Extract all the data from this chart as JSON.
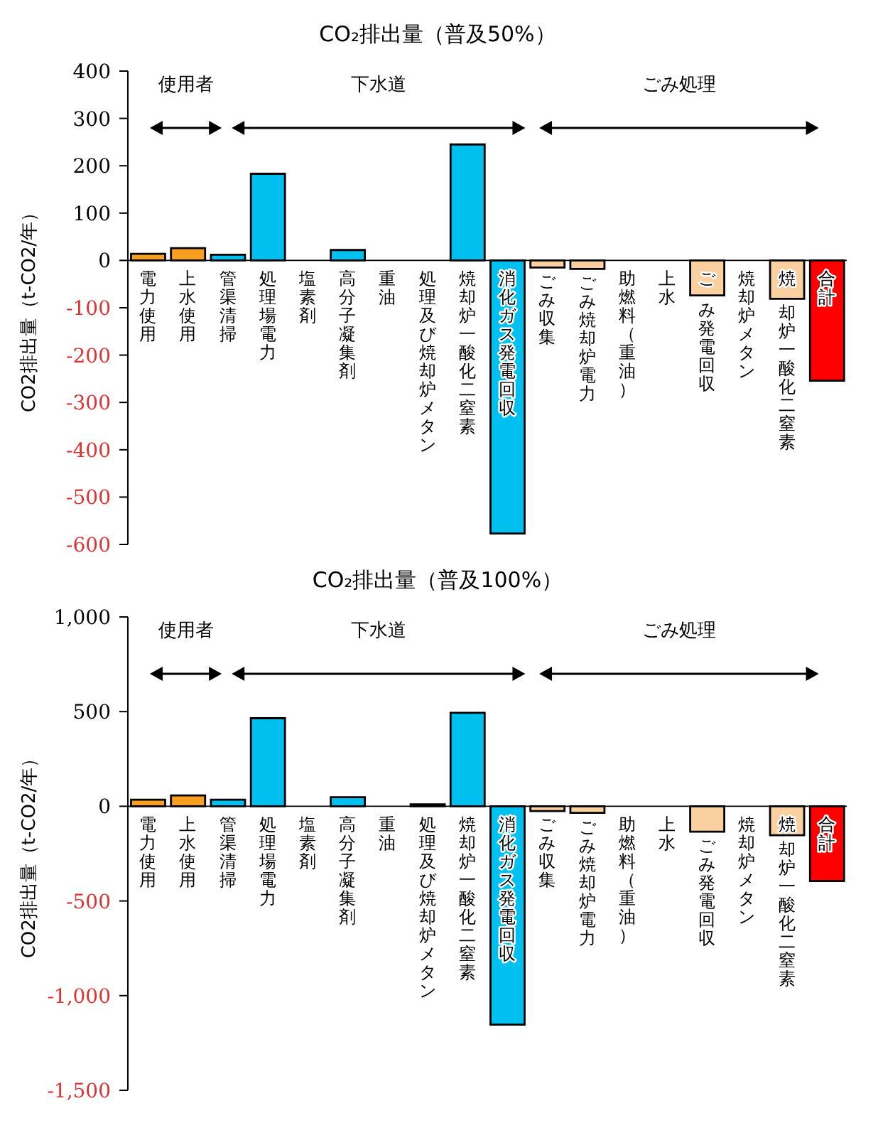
{
  "chart_data": [
    {
      "type": "bar",
      "title": "CO₂排出量（普及50%）",
      "ylabel": "CO2排出量（t-CO2/年）",
      "categories": [
        "電力使用",
        "上水使用",
        "管渠清掃",
        "処理場電力",
        "塩素剤",
        "高分子凝集剤",
        "重油",
        "処理及び焼却炉メタン",
        "焼却炉一酸化二窒素",
        "消化ガス発電回収",
        "ごみ収集",
        "ごみ焼却炉電力",
        "助燃料（重油）",
        "上水",
        "ごみ発電回収",
        "焼却炉メタン",
        "焼却炉一酸化二窒素",
        "合計"
      ],
      "values": [
        14,
        26,
        12,
        183,
        0,
        22,
        0,
        0,
        245,
        -577,
        -15,
        -18,
        0,
        0,
        -74,
        0,
        -81,
        -254
      ],
      "colors": [
        "#f7a020",
        "#f7a020",
        "#00c0f0",
        "#00c0f0",
        "#00c0f0",
        "#00c0f0",
        "#00c0f0",
        "#00c0f0",
        "#00c0f0",
        "#00c0f0",
        "#fbd0a0",
        "#fbd0a0",
        "#fbd0a0",
        "#fbd0a0",
        "#fbd0a0",
        "#fbd0a0",
        "#fbd0a0",
        "#ff0000"
      ],
      "ylim": [
        -600,
        400
      ],
      "yticks": [
        -600,
        -500,
        -400,
        -300,
        -200,
        -100,
        0,
        100,
        200,
        300,
        400
      ],
      "annotations": [
        "使用者",
        "下水道",
        "ごみ処理"
      ],
      "grid": false,
      "legend": false
    },
    {
      "type": "bar",
      "title": "CO₂排出量（普及100%）",
      "ylabel": "CO2排出量（t-CO2/年）",
      "categories": [
        "電力使用",
        "上水使用",
        "管渠清掃",
        "処理場電力",
        "塩素剤",
        "高分子凝集剤",
        "重油",
        "処理及び焼却炉メタン",
        "焼却炉一酸化二窒素",
        "消化ガス発電回収",
        "ごみ収集",
        "ごみ焼却炉電力",
        "助燃料（重油）",
        "上水",
        "ごみ発電回収",
        "焼却炉メタン",
        "焼却炉一酸化二窒素",
        "合計"
      ],
      "values": [
        35,
        57,
        35,
        465,
        0,
        48,
        0,
        10,
        494,
        -1153,
        -25,
        -35,
        0,
        0,
        -134,
        0,
        -153,
        -395
      ],
      "colors": [
        "#f7a020",
        "#f7a020",
        "#00c0f0",
        "#00c0f0",
        "#00c0f0",
        "#00c0f0",
        "#00c0f0",
        "#00c0f0",
        "#00c0f0",
        "#00c0f0",
        "#fbd0a0",
        "#fbd0a0",
        "#fbd0a0",
        "#fbd0a0",
        "#fbd0a0",
        "#fbd0a0",
        "#fbd0a0",
        "#ff0000"
      ],
      "ylim": [
        -1500,
        1000
      ],
      "yticks": [
        {
          "value": -1500,
          "label": "-1,500"
        },
        {
          "value": -1000,
          "label": "-1,000"
        },
        {
          "value": -500,
          "label": "-500"
        },
        0,
        500,
        {
          "value": 1000,
          "label": "1,000"
        }
      ],
      "annotations": [
        "使用者",
        "下水道",
        "ごみ処理"
      ],
      "grid": false,
      "legend": false
    }
  ]
}
